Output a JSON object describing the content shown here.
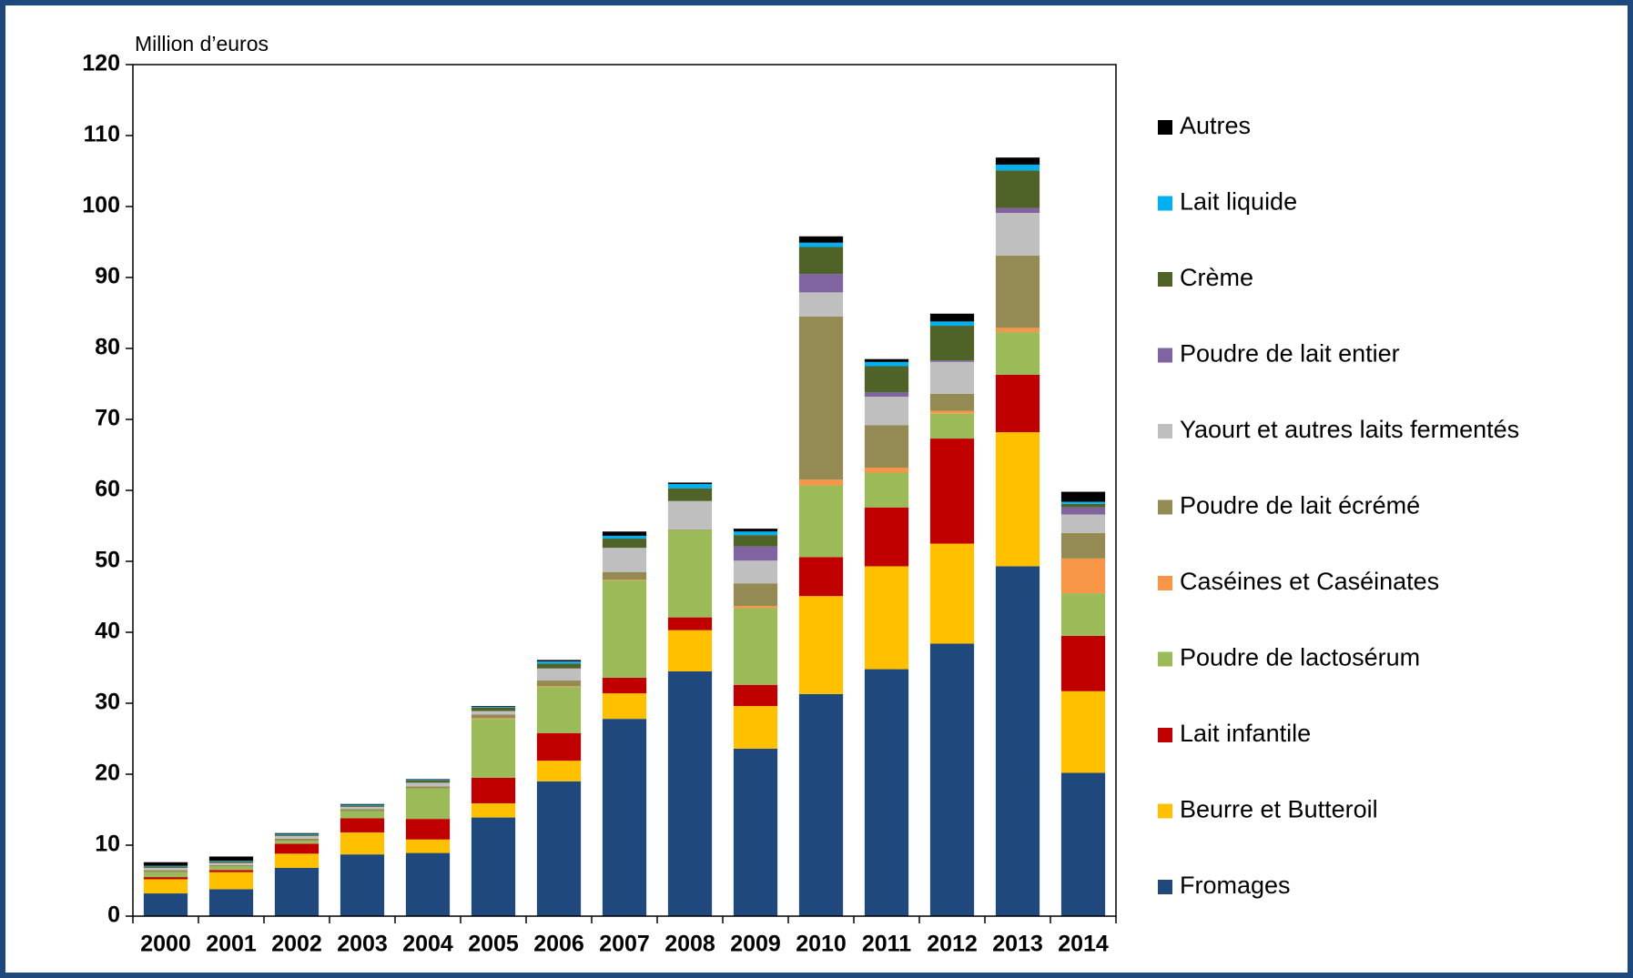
{
  "chart_data": {
    "type": "stacked_bar",
    "y_axis_label": "Million d’euros",
    "categories": [
      "2000",
      "2001",
      "2002",
      "2003",
      "2004",
      "2005",
      "2006",
      "2007",
      "2008",
      "2009",
      "2010",
      "2011",
      "2012",
      "2013",
      "2014"
    ],
    "ylim": [
      0,
      120
    ],
    "yticks": [
      0,
      10,
      20,
      30,
      40,
      50,
      60,
      70,
      80,
      90,
      100,
      110,
      120
    ],
    "grid": false,
    "legend": "right",
    "series": [
      {
        "name": "Fromages",
        "color": "#1f497d",
        "values": [
          3.2,
          3.8,
          6.8,
          8.7,
          8.9,
          13.9,
          19.0,
          27.8,
          34.5,
          23.6,
          31.3,
          34.8,
          38.4,
          49.3,
          20.2
        ]
      },
      {
        "name": "Beurre et Butteroil",
        "color": "#ffc000",
        "values": [
          2.0,
          2.4,
          2.0,
          3.1,
          1.9,
          2.0,
          2.9,
          3.6,
          5.8,
          6.0,
          13.8,
          14.5,
          14.1,
          18.9,
          11.5
        ]
      },
      {
        "name": "Lait infantile",
        "color": "#c00000",
        "values": [
          0.3,
          0.3,
          1.4,
          2.0,
          2.9,
          3.6,
          3.9,
          2.2,
          1.8,
          3.0,
          5.5,
          8.3,
          14.8,
          8.1,
          7.8
        ]
      },
      {
        "name": "Poudre de lactosérum",
        "color": "#9bbb59",
        "values": [
          0.7,
          0.5,
          0.4,
          1.0,
          4.3,
          8.3,
          6.5,
          13.7,
          12.3,
          10.8,
          10.1,
          4.9,
          3.5,
          6.0,
          6.0
        ]
      },
      {
        "name": "Caséines et Caséinates",
        "color": "#f79646",
        "values": [
          0,
          0,
          0,
          0,
          0,
          0.1,
          0.1,
          0.1,
          0,
          0.3,
          0.8,
          0.7,
          0.4,
          0.6,
          4.9
        ]
      },
      {
        "name": "Poudre de lait écrémé",
        "color": "#948a54",
        "values": [
          0.3,
          0.2,
          0.3,
          0.3,
          0.3,
          0.5,
          0.8,
          1.1,
          0.1,
          3.2,
          23.0,
          6.0,
          2.4,
          10.2,
          3.6
        ]
      },
      {
        "name": "Yaourt et autres laits fermentés",
        "color": "#bfbfbf",
        "values": [
          0.3,
          0.3,
          0.4,
          0.3,
          0.5,
          0.5,
          1.7,
          3.4,
          4.0,
          3.2,
          3.4,
          4.0,
          4.5,
          6.0,
          2.6
        ]
      },
      {
        "name": "Poudre de lait entier",
        "color": "#8064a2",
        "values": [
          0,
          0,
          0,
          0,
          0,
          0,
          0,
          0,
          0,
          2.0,
          2.6,
          0.6,
          0.2,
          0.7,
          1.0
        ]
      },
      {
        "name": "Crème",
        "color": "#4f6228",
        "values": [
          0.2,
          0.2,
          0.2,
          0.2,
          0.3,
          0.5,
          0.7,
          1.3,
          1.8,
          1.6,
          3.8,
          3.7,
          4.9,
          5.3,
          0.5
        ]
      },
      {
        "name": "Lait liquide",
        "color": "#00b0f0",
        "values": [
          0.1,
          0.1,
          0.1,
          0.1,
          0.1,
          0.1,
          0.3,
          0.4,
          0.6,
          0.5,
          0.6,
          0.6,
          0.6,
          0.8,
          0.3
        ]
      },
      {
        "name": "Autres",
        "color": "#000000",
        "values": [
          0.5,
          0.6,
          0.1,
          0.1,
          0.1,
          0.1,
          0.2,
          0.6,
          0.2,
          0.4,
          0.9,
          0.4,
          1.1,
          1.0,
          1.4
        ]
      }
    ]
  }
}
